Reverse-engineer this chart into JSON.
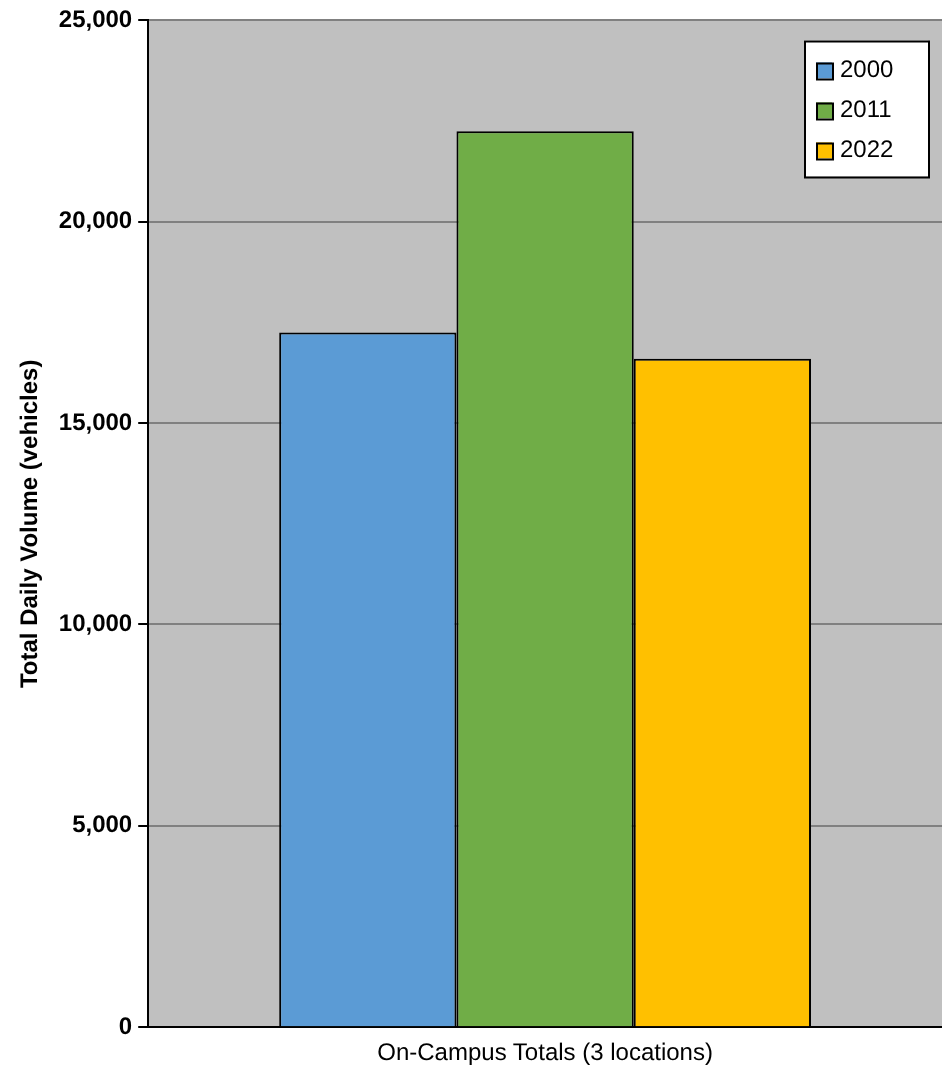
{
  "chart_data": {
    "type": "bar",
    "categories": [
      "On-Campus Totals (3 locations)"
    ],
    "series": [
      {
        "name": "2000",
        "color": "#5b9bd5",
        "values": [
          17250
        ]
      },
      {
        "name": "2011",
        "color": "#70ad47",
        "values": [
          22250
        ]
      },
      {
        "name": "2022",
        "color": "#ffc000",
        "values": [
          16600
        ]
      }
    ],
    "ylabel": "Total Daily Volume (vehicles)",
    "ylim": [
      0,
      25000
    ],
    "yticks": [
      {
        "value": 0,
        "label": "0"
      },
      {
        "value": 5000,
        "label": "5,000"
      },
      {
        "value": 10000,
        "label": "10,000"
      },
      {
        "value": 15000,
        "label": "15,000"
      },
      {
        "value": 20000,
        "label": "20,000"
      },
      {
        "value": 25000,
        "label": "25,000"
      }
    ],
    "grid": "y",
    "legend": "top right"
  }
}
